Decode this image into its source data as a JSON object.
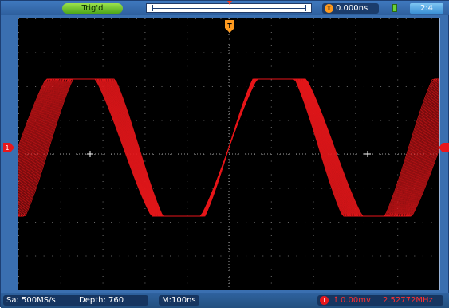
{
  "top_bar": {
    "trigger_status": "Trig'd",
    "trigger_position": "0.000ns",
    "trigger_position_icon": "T",
    "clock": "2:4"
  },
  "screen": {
    "grid_divisions_x": 10,
    "grid_divisions_y": 8,
    "trace_color": "#e8171b",
    "trigger_marker_color": "#ff9a1f",
    "channel_marker_label": "1",
    "trigger_marker_label": "T"
  },
  "bottom_bar": {
    "sample_rate": "Sa: 500MS/s",
    "depth": "Depth: 760",
    "time_base": "M:100ns",
    "trigger_channel_icon": "1",
    "trigger_edge": "↑",
    "trigger_level": "0.00mv",
    "frequency": "2.52772MHz"
  },
  "icons": [
    "trigger-status-badge",
    "timebase-marker-icon",
    "trigger-t-icon",
    "battery-icon",
    "channel-1-icon",
    "rising-edge-icon"
  ]
}
